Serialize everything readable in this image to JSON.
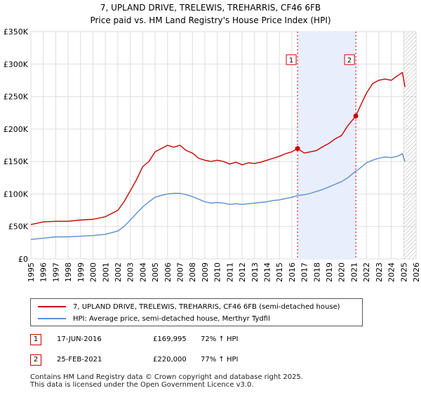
{
  "header": {
    "title": "7, UPLAND DRIVE, TRELEWIS, TREHARRIS, CF46 6FB",
    "subtitle": "Price paid vs. HM Land Registry's House Price Index (HPI)"
  },
  "colors": {
    "price": "#cc0000",
    "hpi": "#5b8fd1",
    "shade": "#e8eefb",
    "grid": "#dddddd"
  },
  "chart_data": {
    "type": "line",
    "xlim": [
      1995,
      2026
    ],
    "ylim": [
      0,
      350000
    ],
    "x_ticks": [
      "1995",
      "1996",
      "1997",
      "1998",
      "1999",
      "2000",
      "2001",
      "2002",
      "2003",
      "2004",
      "2005",
      "2006",
      "2007",
      "2008",
      "2009",
      "2010",
      "2011",
      "2012",
      "2013",
      "2014",
      "2015",
      "2016",
      "2017",
      "2018",
      "2019",
      "2020",
      "2021",
      "2022",
      "2023",
      "2024",
      "2025",
      "2026"
    ],
    "y_ticks": [
      {
        "value": 0,
        "label": "£0"
      },
      {
        "value": 50000,
        "label": "£50K"
      },
      {
        "value": 100000,
        "label": "£100K"
      },
      {
        "value": 150000,
        "label": "£150K"
      },
      {
        "value": 200000,
        "label": "£200K"
      },
      {
        "value": 250000,
        "label": "£250K"
      },
      {
        "value": 300000,
        "label": "£300K"
      },
      {
        "value": 350000,
        "label": "£350K"
      }
    ],
    "shade_range": [
      2016.46,
      2021.15
    ],
    "hatch_from": 2025.0,
    "series": [
      {
        "name": "7, UPLAND DRIVE, TRELEWIS, TREHARRIS, CF46 6FB (semi-detached house)",
        "x": [
          1995,
          1996,
          1997,
          1998,
          1999,
          2000,
          2001,
          2002,
          2002.5,
          2003,
          2003.5,
          2004,
          2004.5,
          2005,
          2005.5,
          2006,
          2006.5,
          2007,
          2007.5,
          2008,
          2008.5,
          2009,
          2009.5,
          2010,
          2010.5,
          2011,
          2011.5,
          2012,
          2012.5,
          2013,
          2013.5,
          2014,
          2014.5,
          2015,
          2015.5,
          2016,
          2016.46,
          2017,
          2017.5,
          2018,
          2018.5,
          2019,
          2019.5,
          2020,
          2020.5,
          2021.15,
          2021.5,
          2022,
          2022.5,
          2023,
          2023.5,
          2024,
          2024.5,
          2024.9,
          2025.1
        ],
        "y": [
          53000,
          57000,
          58000,
          58000,
          60000,
          61000,
          65000,
          75000,
          88000,
          105000,
          122000,
          142000,
          150000,
          165000,
          170000,
          175000,
          172000,
          175000,
          167000,
          163000,
          155000,
          152000,
          150000,
          152000,
          150000,
          146000,
          149000,
          145000,
          148000,
          147000,
          149000,
          152000,
          155000,
          158000,
          162000,
          165000,
          169995,
          163000,
          165000,
          167000,
          173000,
          178000,
          185000,
          190000,
          205000,
          220000,
          235000,
          255000,
          270000,
          275000,
          277000,
          275000,
          282000,
          287000,
          265000
        ]
      },
      {
        "name": "HPI: Average price, semi-detached house, Merthyr Tydfil",
        "x": [
          1995,
          1996,
          1997,
          1998,
          1999,
          2000,
          2001,
          2002,
          2002.5,
          2003,
          2003.5,
          2004,
          2004.5,
          2005,
          2005.5,
          2006,
          2006.5,
          2007,
          2007.5,
          2008,
          2008.5,
          2009,
          2009.5,
          2010,
          2010.5,
          2011,
          2011.5,
          2012,
          2012.5,
          2013,
          2013.5,
          2014,
          2014.5,
          2015,
          2015.5,
          2016,
          2016.5,
          2017,
          2017.5,
          2018,
          2018.5,
          2019,
          2019.5,
          2020,
          2020.5,
          2021,
          2021.5,
          2022,
          2022.5,
          2023,
          2023.5,
          2024,
          2024.5,
          2024.9,
          2025.1
        ],
        "y": [
          30000,
          32000,
          34000,
          34000,
          35000,
          36000,
          38000,
          43000,
          50000,
          60000,
          70000,
          80000,
          88000,
          95000,
          98000,
          100000,
          101000,
          101000,
          99000,
          96000,
          92000,
          88000,
          86000,
          87000,
          86000,
          84000,
          85000,
          84000,
          85000,
          86000,
          87000,
          88000,
          90000,
          91000,
          93000,
          95000,
          98000,
          99000,
          101000,
          104000,
          107000,
          111000,
          115000,
          119000,
          125000,
          133000,
          140000,
          148000,
          152000,
          155000,
          157000,
          156000,
          158000,
          162000,
          150000
        ]
      }
    ],
    "sales": [
      {
        "label": "1",
        "x": 2016.46,
        "y": 169995,
        "date": "17-JUN-2016",
        "price": "£169,995",
        "hpi": "72% ↑ HPI"
      },
      {
        "label": "2",
        "x": 2021.15,
        "y": 220000,
        "date": "25-FEB-2021",
        "price": "£220,000",
        "hpi": "77% ↑ HPI"
      }
    ]
  },
  "legend": {
    "price_label": "7, UPLAND DRIVE, TRELEWIS, TREHARRIS, CF46 6FB (semi-detached house)",
    "hpi_label": "HPI: Average price, semi-detached house, Merthyr Tydfil"
  },
  "footer": {
    "line1": "Contains HM Land Registry data © Crown copyright and database right 2025.",
    "line2": "This data is licensed under the Open Government Licence v3.0."
  }
}
